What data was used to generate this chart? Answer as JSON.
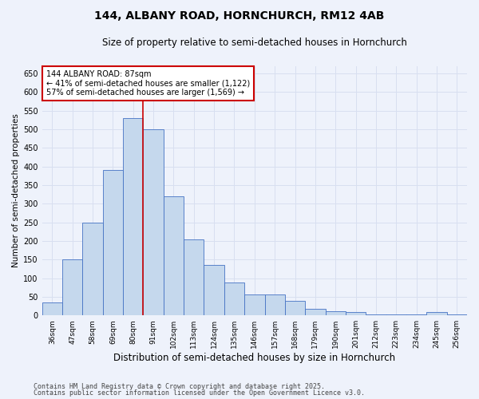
{
  "title": "144, ALBANY ROAD, HORNCHURCH, RM12 4AB",
  "subtitle": "Size of property relative to semi-detached houses in Hornchurch",
  "xlabel": "Distribution of semi-detached houses by size in Hornchurch",
  "ylabel": "Number of semi-detached properties",
  "categories": [
    "36sqm",
    "47sqm",
    "58sqm",
    "69sqm",
    "80sqm",
    "91sqm",
    "102sqm",
    "113sqm",
    "124sqm",
    "135sqm",
    "146sqm",
    "157sqm",
    "168sqm",
    "179sqm",
    "190sqm",
    "201sqm",
    "212sqm",
    "223sqm",
    "234sqm",
    "245sqm",
    "256sqm"
  ],
  "values": [
    35,
    150,
    250,
    390,
    530,
    500,
    320,
    205,
    135,
    88,
    57,
    57,
    38,
    18,
    12,
    8,
    3,
    3,
    2,
    8,
    3
  ],
  "bar_color": "#c5d8ed",
  "bar_edge_color": "#4472c4",
  "property_line_index": 4,
  "annotation_title": "144 ALBANY ROAD: 87sqm",
  "annotation_line1": "← 41% of semi-detached houses are smaller (1,122)",
  "annotation_line2": "57% of semi-detached houses are larger (1,569) →",
  "annotation_box_color": "#ffffff",
  "annotation_box_edge": "#cc0000",
  "ylim": [
    0,
    670
  ],
  "yticks": [
    0,
    50,
    100,
    150,
    200,
    250,
    300,
    350,
    400,
    450,
    500,
    550,
    600,
    650
  ],
  "footnote1": "Contains HM Land Registry data © Crown copyright and database right 2025.",
  "footnote2": "Contains public sector information licensed under the Open Government Licence v3.0.",
  "bg_color": "#eef2fb",
  "grid_color": "#d8dff0",
  "title_fontsize": 10,
  "subtitle_fontsize": 8.5,
  "xlabel_fontsize": 8.5,
  "ylabel_fontsize": 7.5,
  "footnote_fontsize": 6.0
}
